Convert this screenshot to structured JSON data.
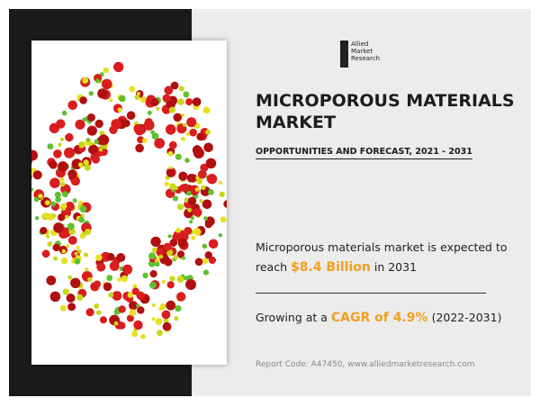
{
  "logo": {
    "lines": [
      "Allied",
      "Market",
      "Research"
    ]
  },
  "title": "MICROPOROUS MATERIALS MARKET",
  "subtitle": "OPPORTUNITIES AND FORECAST, 2021 - 2031",
  "forecast": {
    "prefix": "Microporous materials market is expected to reach",
    "value": "$8.4 Billion",
    "suffix": "in 2031"
  },
  "growth": {
    "prefix": "Growing at a",
    "cagr": "CAGR of 4.9%",
    "period": "(2022-2031)"
  },
  "footer": "Report Code: A47450, www.alliedmarketresearch.com"
}
